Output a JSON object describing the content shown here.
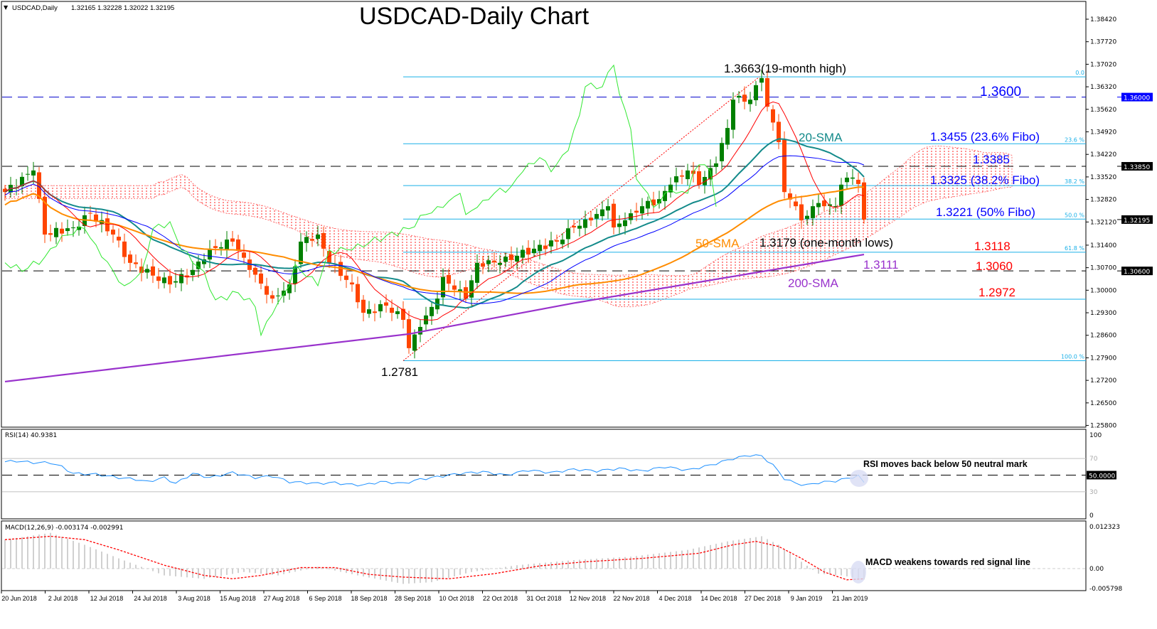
{
  "header": {
    "symbol": "USDCAD,Daily",
    "ohlc": "1.32165 1.32228 1.32022 1.32195"
  },
  "chart_data": {
    "type": "candlestick",
    "title": "USDCAD-Daily Chart",
    "ylim": [
      1.258,
      1.388
    ],
    "y_ticks": [
      "1.38420",
      "1.37720",
      "1.37020",
      "1.36320",
      "1.35620",
      "1.34920",
      "1.34220",
      "1.33520",
      "1.32820",
      "1.32120",
      "1.31400",
      "1.30700",
      "1.30000",
      "1.29300",
      "1.28600",
      "1.27900",
      "1.27200",
      "1.26500",
      "1.25800"
    ],
    "price_badges": [
      {
        "label": "1.36000",
        "value": 1.36,
        "color": "#0000ff"
      },
      {
        "label": "1.33850",
        "value": 1.3385,
        "color": "#000000"
      },
      {
        "label": "1.32195",
        "value": 1.32195,
        "color": "#000000"
      },
      {
        "label": "1.30600",
        "value": 1.306,
        "color": "#000000"
      }
    ],
    "x_ticks": [
      "20 Jun 2018",
      "2 Jul 2018",
      "12 Jul 2018",
      "24 Jul 2018",
      "3 Aug 2018",
      "15 Aug 2018",
      "27 Aug 2018",
      "6 Sep 2018",
      "18 Sep 2018",
      "28 Sep 2018",
      "10 Oct 2018",
      "22 Oct 2018",
      "31 Oct 2018",
      "12 Nov 2018",
      "22 Nov 2018",
      "4 Dec 2018",
      "14 Dec 2018",
      "27 Dec 2018",
      "9 Jan 2019",
      "21 Jan 2019"
    ],
    "bar_count": 152,
    "close_keypoints": [
      [
        0,
        1.3305
      ],
      [
        5,
        1.3372
      ],
      [
        7,
        1.3173
      ],
      [
        12,
        1.3195
      ],
      [
        15,
        1.3239
      ],
      [
        19,
        1.3173
      ],
      [
        22,
        1.3085
      ],
      [
        29,
        1.3018
      ],
      [
        33,
        1.3063
      ],
      [
        36,
        1.3129
      ],
      [
        40,
        1.3151
      ],
      [
        43,
        1.3063
      ],
      [
        47,
        1.2974
      ],
      [
        50,
        1.3018
      ],
      [
        52,
        1.3151
      ],
      [
        55,
        1.3173
      ],
      [
        57,
        1.3085
      ],
      [
        61,
        1.3018
      ],
      [
        63,
        1.293
      ],
      [
        67,
        1.2952
      ],
      [
        70,
        1.2908
      ],
      [
        71,
        1.282
      ],
      [
        73,
        1.2886
      ],
      [
        76,
        1.2974
      ],
      [
        77,
        1.3041
      ],
      [
        81,
        1.2974
      ],
      [
        83,
        1.3085
      ],
      [
        87,
        1.3085
      ],
      [
        90,
        1.3107
      ],
      [
        93,
        1.3129
      ],
      [
        97,
        1.3151
      ],
      [
        100,
        1.3195
      ],
      [
        103,
        1.3217
      ],
      [
        106,
        1.3261
      ],
      [
        107,
        1.3195
      ],
      [
        110,
        1.3239
      ],
      [
        112,
        1.3261
      ],
      [
        115,
        1.3283
      ],
      [
        117,
        1.3328
      ],
      [
        120,
        1.3372
      ],
      [
        122,
        1.3328
      ],
      [
        125,
        1.3394
      ],
      [
        127,
        1.3504
      ],
      [
        128,
        1.3592
      ],
      [
        131,
        1.3592
      ],
      [
        132,
        1.3637
      ],
      [
        133,
        1.3659
      ],
      [
        134,
        1.357
      ],
      [
        136,
        1.346
      ],
      [
        137,
        1.3305
      ],
      [
        139,
        1.3261
      ],
      [
        140,
        1.3217
      ],
      [
        142,
        1.3261
      ],
      [
        144,
        1.3261
      ],
      [
        146,
        1.3261
      ],
      [
        147,
        1.3328
      ],
      [
        149,
        1.335
      ],
      [
        150,
        1.333
      ],
      [
        151,
        1.32195
      ]
    ],
    "sma200_keypoints": [
      [
        0,
        1.2716
      ],
      [
        71,
        1.2864
      ],
      [
        100,
        1.296
      ],
      [
        151,
        1.3111
      ]
    ],
    "fibonacci": {
      "levels": [
        {
          "label": "0.0",
          "value": 1.3663
        },
        {
          "label": "23.6 %",
          "value": 1.3455
        },
        {
          "label": "38.2 %",
          "value": 1.3325
        },
        {
          "label": "50.0 %",
          "value": 1.3221
        },
        {
          "label": "61.8 %",
          "value": 1.3118
        },
        {
          "label": "100.0 %",
          "value": 1.2781
        }
      ]
    },
    "horizontal_lines": [
      {
        "value": 1.36,
        "style": "dashed",
        "color": "#0000cc"
      },
      {
        "value": 1.3385,
        "style": "dashed",
        "color": "#000000"
      },
      {
        "value": 1.306,
        "style": "dashed",
        "color": "#000000"
      },
      {
        "value": 1.2972,
        "style": "solid",
        "color": "#1ab0e8"
      }
    ],
    "annotations": [
      {
        "text": "1.3663(19-month high)",
        "color": "#000000"
      },
      {
        "text": "1.3600",
        "color": "#0000ff"
      },
      {
        "text": "20-SMA",
        "color": "#138a8a"
      },
      {
        "text": "1.3455 (23.6% Fibo)",
        "color": "#0000ff"
      },
      {
        "text": "1.3385",
        "color": "#0000ff"
      },
      {
        "text": "1.3325 (38.2% Fibo)",
        "color": "#0000ff"
      },
      {
        "text": "1.3221 (50% Fibo)",
        "color": "#0000ff"
      },
      {
        "text": "50-SMA",
        "color": "#ff8c00"
      },
      {
        "text": "1.3179 (one-month lows)",
        "color": "#000000"
      },
      {
        "text": "1.3118",
        "color": "#ff0000"
      },
      {
        "text": "1.3111",
        "color": "#9932cc"
      },
      {
        "text": "1.3060",
        "color": "#ff0000"
      },
      {
        "text": "200-SMA",
        "color": "#9932cc"
      },
      {
        "text": "1.2972",
        "color": "#ff0000"
      },
      {
        "text": "1.2781",
        "color": "#000000"
      }
    ],
    "rsi": {
      "label": "RSI(14) 40.9381",
      "ticks": [
        "100",
        "70",
        "30",
        "0"
      ],
      "badge": "50.0000",
      "note": "RSI moves back below 50 neutral mark",
      "keypoints": [
        [
          0,
          66
        ],
        [
          2,
          67
        ],
        [
          5,
          65
        ],
        [
          8,
          65
        ],
        [
          10,
          60
        ],
        [
          12,
          52
        ],
        [
          16,
          51
        ],
        [
          20,
          47
        ],
        [
          23,
          45
        ],
        [
          25,
          42
        ],
        [
          28,
          47
        ],
        [
          30,
          40
        ],
        [
          33,
          52
        ],
        [
          36,
          47
        ],
        [
          40,
          53
        ],
        [
          44,
          47
        ],
        [
          47,
          49
        ],
        [
          50,
          42
        ],
        [
          55,
          40
        ],
        [
          58,
          41
        ],
        [
          60,
          39
        ],
        [
          63,
          38
        ],
        [
          66,
          42
        ],
        [
          70,
          40
        ],
        [
          73,
          45
        ],
        [
          76,
          48
        ],
        [
          80,
          52
        ],
        [
          84,
          54
        ],
        [
          88,
          50
        ],
        [
          92,
          56
        ],
        [
          96,
          53
        ],
        [
          100,
          57
        ],
        [
          104,
          55
        ],
        [
          108,
          58
        ],
        [
          112,
          55
        ],
        [
          116,
          60
        ],
        [
          120,
          56
        ],
        [
          124,
          62
        ],
        [
          128,
          70
        ],
        [
          131,
          74
        ],
        [
          133,
          73
        ],
        [
          135,
          62
        ],
        [
          137,
          46
        ],
        [
          139,
          40
        ],
        [
          141,
          38
        ],
        [
          143,
          41
        ],
        [
          146,
          43
        ],
        [
          148,
          46
        ],
        [
          150,
          49
        ],
        [
          151,
          41
        ]
      ]
    },
    "macd": {
      "label": "MACD(12,26,9) -0.003174 -0.002991",
      "ticks": [
        "0.012323",
        "0.00",
        "-0.005798"
      ],
      "note": "MACD weakens towards red signal line",
      "histogram_keypoints": [
        [
          0,
          0.0085
        ],
        [
          8,
          0.0105
        ],
        [
          14,
          0.007
        ],
        [
          20,
          0.003
        ],
        [
          28,
          -0.002
        ],
        [
          35,
          -0.003
        ],
        [
          42,
          -0.001
        ],
        [
          48,
          -0.002
        ],
        [
          55,
          0.0005
        ],
        [
          62,
          -0.002
        ],
        [
          70,
          -0.0045
        ],
        [
          75,
          -0.004
        ],
        [
          82,
          -0.001
        ],
        [
          90,
          0.001
        ],
        [
          100,
          0.0025
        ],
        [
          110,
          0.0035
        ],
        [
          120,
          0.0055
        ],
        [
          127,
          0.008
        ],
        [
          133,
          0.0095
        ],
        [
          136,
          0.007
        ],
        [
          140,
          0.002
        ],
        [
          143,
          -0.0015
        ],
        [
          147,
          -0.002
        ],
        [
          151,
          -0.0032
        ]
      ],
      "signal_keypoints": [
        [
          0,
          0.0085
        ],
        [
          8,
          0.0095
        ],
        [
          14,
          0.0085
        ],
        [
          20,
          0.0055
        ],
        [
          28,
          0.001
        ],
        [
          35,
          -0.002
        ],
        [
          40,
          -0.003
        ],
        [
          45,
          -0.002
        ],
        [
          52,
          0.0003
        ],
        [
          58,
          0.0003
        ],
        [
          64,
          -0.0017
        ],
        [
          70,
          -0.0025
        ],
        [
          78,
          -0.003
        ],
        [
          86,
          -0.0015
        ],
        [
          94,
          0.0008
        ],
        [
          102,
          0.002
        ],
        [
          112,
          0.003
        ],
        [
          122,
          0.0045
        ],
        [
          128,
          0.007
        ],
        [
          132,
          0.008
        ],
        [
          136,
          0.0065
        ],
        [
          140,
          0.003
        ],
        [
          144,
          -0.001
        ],
        [
          148,
          -0.0033
        ],
        [
          151,
          -0.003
        ]
      ]
    },
    "colors": {
      "up": "#008000",
      "down": "#ff4500",
      "sma20": "#138a8a",
      "sma50": "#ff8c00",
      "sma200": "#9932cc",
      "rsi": "#1e90ff",
      "fibo": "#1ab0e8"
    }
  }
}
